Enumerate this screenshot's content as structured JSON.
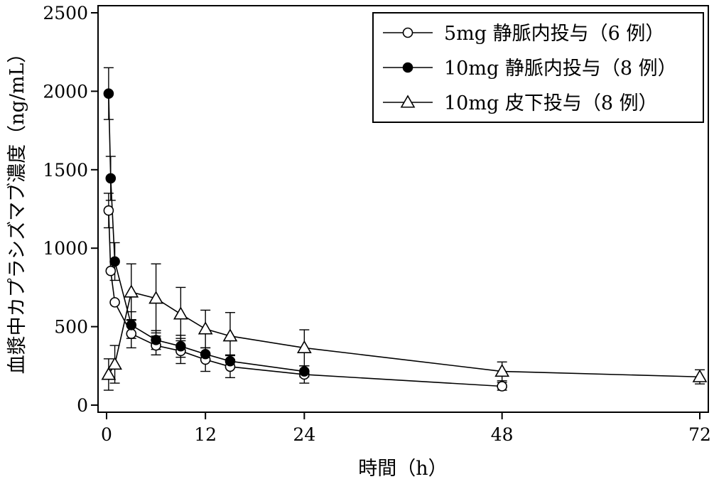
{
  "chart_data": {
    "type": "line",
    "title": "",
    "xlabel": "時間（h）",
    "ylabel": "血漿中カプラシズマブ濃度（ng/mL）",
    "xlim": [
      0,
      72
    ],
    "ylim": [
      0,
      2500
    ],
    "x_ticks": [
      0,
      12,
      24,
      48,
      72
    ],
    "y_ticks": [
      0,
      500,
      1000,
      1500,
      2000,
      2500
    ],
    "grid": false,
    "legend_position": "top-right",
    "series": [
      {
        "name": "5mg 静脈内投与（6 例）",
        "marker": "circle-open",
        "x": [
          0.25,
          0.5,
          1,
          3,
          6,
          9,
          12,
          15,
          24,
          48
        ],
        "y": [
          1240,
          855,
          655,
          455,
          380,
          345,
          290,
          245,
          195,
          120
        ],
        "err": [
          110,
          0,
          0,
          90,
          60,
          80,
          75,
          70,
          55,
          25
        ]
      },
      {
        "name": "10mg 静脈内投与（8 例）",
        "marker": "circle-filled",
        "x": [
          0.25,
          0.5,
          1,
          3,
          6,
          9,
          12,
          15,
          24
        ],
        "y": [
          1985,
          1445,
          915,
          510,
          415,
          375,
          325,
          280,
          215
        ],
        "err": [
          165,
          140,
          120,
          85,
          60,
          70,
          0,
          40,
          35
        ]
      },
      {
        "name": "10mg 皮下投与（8 例）",
        "marker": "triangle-open",
        "x": [
          0.25,
          1,
          3,
          6,
          9,
          12,
          15,
          24,
          48,
          72
        ],
        "y": [
          195,
          260,
          720,
          680,
          580,
          485,
          440,
          365,
          215,
          180
        ],
        "err": [
          100,
          120,
          180,
          220,
          170,
          120,
          150,
          115,
          60,
          45
        ]
      }
    ]
  }
}
